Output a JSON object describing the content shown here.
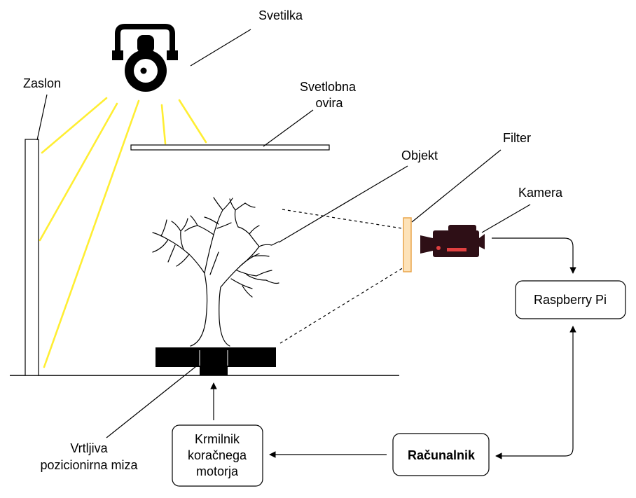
{
  "labels": {
    "svetilka": "Svetilka",
    "zaslon": "Zaslon",
    "svetlobna_ovira": [
      "Svetlobna",
      "ovira"
    ],
    "filter": "Filter",
    "objekt": "Objekt",
    "kamera": "Kamera",
    "raspberry_pi": "Raspberry Pi",
    "krmilnik": [
      "Krmilnik",
      "koračnega",
      "motorja"
    ],
    "racunalnik": "Računalnik",
    "miza": [
      "Vrtljiva",
      "pozicionirna miza"
    ]
  },
  "colors": {
    "light_rays": "#ffee33",
    "filter_fill": "#fde2b8",
    "filter_stroke": "#e8a040",
    "camera_body": "#2e0f16",
    "camera_accent": "#e04040",
    "line": "#000000"
  },
  "icons": {
    "lamp": "spotlight-icon",
    "camera": "video-camera-icon",
    "tree": "bare-tree-icon"
  }
}
